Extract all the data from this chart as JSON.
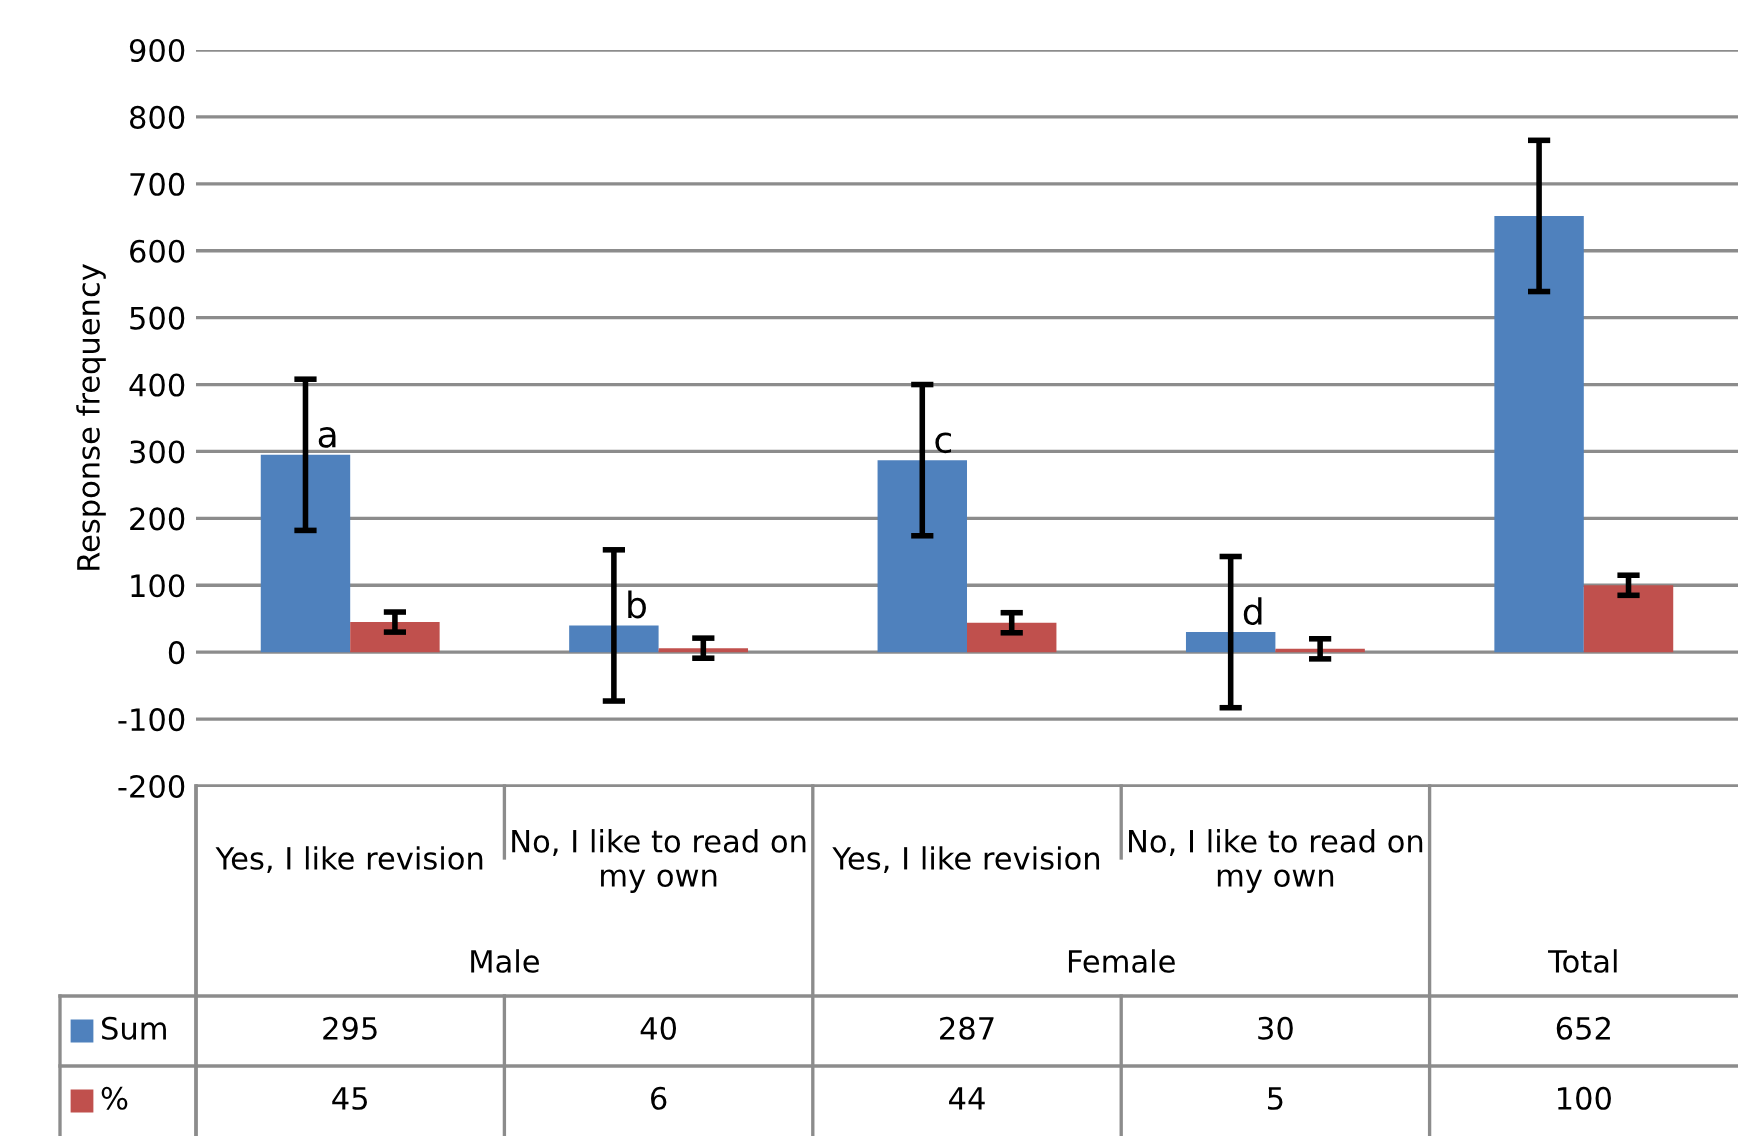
{
  "chart_data": {
    "type": "bar",
    "ylabel": "Response frequency",
    "categories": [
      "Yes, I like revision",
      "No, I like to read on my own",
      "Yes, I like revision",
      "No, I like to read on my own",
      null
    ],
    "series": [
      {
        "name": "Sum",
        "color": "#4f81bd",
        "values": [
          295,
          40,
          287,
          30,
          652
        ],
        "errors": [
          113,
          113,
          113,
          113,
          113
        ]
      },
      {
        "name": "%",
        "color": "#c0504d",
        "values": [
          45,
          6,
          44,
          5,
          100
        ],
        "errors": [
          15,
          15,
          15,
          15,
          15
        ]
      }
    ],
    "ylim": [
      -200,
      900
    ],
    "yticks": [
      -200,
      -100,
      0,
      100,
      200,
      300,
      400,
      500,
      600,
      700,
      800,
      900
    ],
    "grid": "y",
    "legend": "bottom",
    "data_labels": true,
    "annotations": [
      "a",
      "b",
      "c",
      "d",
      "Male",
      "Female",
      "Total"
    ]
  }
}
